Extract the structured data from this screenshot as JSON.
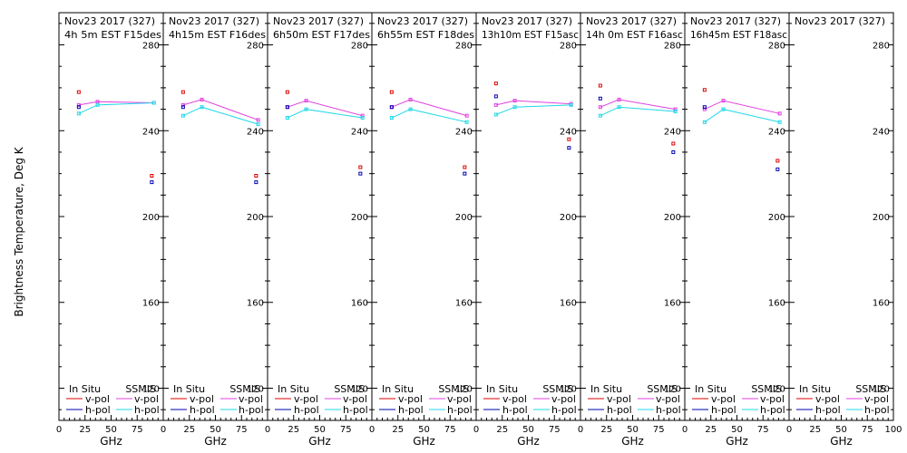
{
  "ylabel": "Brightness Temperature, Deg K",
  "xlabel": "GHz",
  "legend": {
    "insitu_title": "In Situ",
    "ssmis_title": "SSMIS",
    "vpol_label": "v-pol",
    "hpol_label": "h-pol"
  },
  "colors": {
    "insitu_v": "#e00000",
    "insitu_h": "#0000b0",
    "ssmis_v": "#e040e0",
    "ssmis_h": "#20d8e8",
    "axis": "#000000"
  },
  "chart_data": {
    "type": "scatter",
    "ylim": [
      105,
      295
    ],
    "xlim": [
      0,
      100
    ],
    "yticks": [
      120,
      160,
      200,
      240,
      280
    ],
    "xticks": [
      0,
      25,
      50,
      75
    ],
    "last_xtick": 100,
    "ssmis_freqs": [
      19,
      37,
      91
    ],
    "panels": [
      {
        "title": "Nov23 2017 (327)",
        "subtitle": "4h 5m  EST  F15des",
        "insitu_v": [
          [
            19,
            258
          ],
          [
            89,
            219
          ]
        ],
        "insitu_h": [
          [
            19,
            251
          ],
          [
            89,
            216
          ]
        ],
        "ssmis_v": [
          [
            19,
            252
          ],
          [
            37,
            253.5
          ],
          [
            91,
            253
          ]
        ],
        "ssmis_h": [
          [
            19,
            248
          ],
          [
            37,
            252
          ],
          [
            91,
            253
          ]
        ]
      },
      {
        "title": "Nov23 2017 (327)",
        "subtitle": "4h15m  EST  F16des",
        "insitu_v": [
          [
            19,
            258
          ],
          [
            89,
            219
          ]
        ],
        "insitu_h": [
          [
            19,
            251
          ],
          [
            89,
            216
          ]
        ],
        "ssmis_v": [
          [
            19,
            252
          ],
          [
            37,
            254.5
          ],
          [
            91,
            245
          ]
        ],
        "ssmis_h": [
          [
            19,
            247
          ],
          [
            37,
            251
          ],
          [
            91,
            243
          ]
        ]
      },
      {
        "title": "Nov23 2017 (327)",
        "subtitle": "6h50m  EST  F17des",
        "insitu_v": [
          [
            19,
            258
          ],
          [
            89,
            223
          ]
        ],
        "insitu_h": [
          [
            19,
            251
          ],
          [
            89,
            220
          ]
        ],
        "ssmis_v": [
          [
            19,
            251
          ],
          [
            37,
            254
          ],
          [
            91,
            247
          ]
        ],
        "ssmis_h": [
          [
            19,
            246
          ],
          [
            37,
            250
          ],
          [
            91,
            246
          ]
        ]
      },
      {
        "title": "Nov23 2017 (327)",
        "subtitle": "6h55m  EST  F18des",
        "insitu_v": [
          [
            19,
            258
          ],
          [
            89,
            223
          ]
        ],
        "insitu_h": [
          [
            19,
            251
          ],
          [
            89,
            220
          ]
        ],
        "ssmis_v": [
          [
            19,
            251
          ],
          [
            37,
            254.5
          ],
          [
            91,
            247
          ]
        ],
        "ssmis_h": [
          [
            19,
            246
          ],
          [
            37,
            250
          ],
          [
            91,
            244
          ]
        ]
      },
      {
        "title": "Nov23 2017 (327)",
        "subtitle": "13h10m  EST  F15asc",
        "insitu_v": [
          [
            19,
            262
          ],
          [
            89,
            236
          ]
        ],
        "insitu_h": [
          [
            19,
            256
          ],
          [
            89,
            232
          ]
        ],
        "ssmis_v": [
          [
            19,
            252
          ],
          [
            37,
            254
          ],
          [
            91,
            252.5
          ]
        ],
        "ssmis_h": [
          [
            19,
            247.5
          ],
          [
            37,
            251
          ],
          [
            91,
            252
          ]
        ]
      },
      {
        "title": "Nov23 2017 (327)",
        "subtitle": "14h 0m  EST  F16asc",
        "insitu_v": [
          [
            19,
            261
          ],
          [
            89,
            234
          ]
        ],
        "insitu_h": [
          [
            19,
            255
          ],
          [
            89,
            230
          ]
        ],
        "ssmis_v": [
          [
            19,
            251
          ],
          [
            37,
            254.5
          ],
          [
            91,
            250
          ]
        ],
        "ssmis_h": [
          [
            19,
            247
          ],
          [
            37,
            251
          ],
          [
            91,
            249
          ]
        ]
      },
      {
        "title": "Nov23 2017 (327)",
        "subtitle": "16h45m  EST  F18asc",
        "insitu_v": [
          [
            19,
            259
          ],
          [
            89,
            226
          ]
        ],
        "insitu_h": [
          [
            19,
            251
          ],
          [
            89,
            222
          ]
        ],
        "ssmis_v": [
          [
            19,
            250
          ],
          [
            37,
            254
          ],
          [
            91,
            248
          ]
        ],
        "ssmis_h": [
          [
            19,
            244
          ],
          [
            37,
            250
          ],
          [
            91,
            244
          ]
        ]
      },
      {
        "title": "Nov23 2017 (327)",
        "subtitle": "",
        "insitu_v": [],
        "insitu_h": [],
        "ssmis_v": [],
        "ssmis_h": []
      }
    ]
  }
}
